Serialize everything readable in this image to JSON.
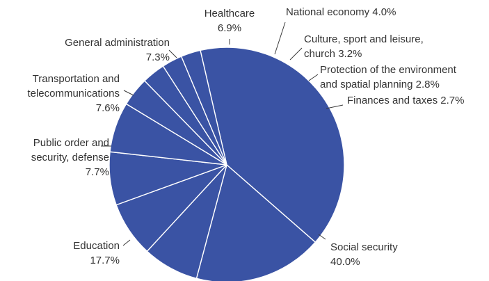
{
  "chart_data": {
    "type": "pie",
    "series": [
      {
        "values": [
          40.0,
          17.7,
          7.7,
          7.6,
          7.3,
          6.9,
          4.0,
          3.2,
          2.8,
          2.7
        ]
      }
    ],
    "slices": [
      {
        "value": 40.0,
        "lines": [
          "Social security",
          "40.0%"
        ]
      },
      {
        "value": 17.7,
        "lines": [
          "Education",
          "17.7%"
        ]
      },
      {
        "value": 7.7,
        "lines": [
          "Public order and",
          "security, defense",
          "7.7%"
        ]
      },
      {
        "value": 7.6,
        "lines": [
          "Transportation and",
          "telecommunications",
          "7.6%"
        ]
      },
      {
        "value": 7.3,
        "lines": [
          "General administration",
          "7.3%"
        ]
      },
      {
        "value": 6.9,
        "lines": [
          "Healthcare",
          "6.9%"
        ]
      },
      {
        "value": 4.0,
        "lines": [
          "National economy 4.0%"
        ]
      },
      {
        "value": 3.2,
        "lines": [
          "Culture, sport and leisure,",
          "church 3.2%"
        ]
      },
      {
        "value": 2.8,
        "lines": [
          "Protection of the environment",
          "and spatial planning 2.8%"
        ]
      },
      {
        "value": 2.7,
        "lines": [
          "Finances and taxes 2.7%"
        ]
      }
    ],
    "colors": {
      "slice": "#3a53a4",
      "edge": "#ffffff",
      "leader": "#3a3a3a",
      "text": "#333333"
    }
  }
}
